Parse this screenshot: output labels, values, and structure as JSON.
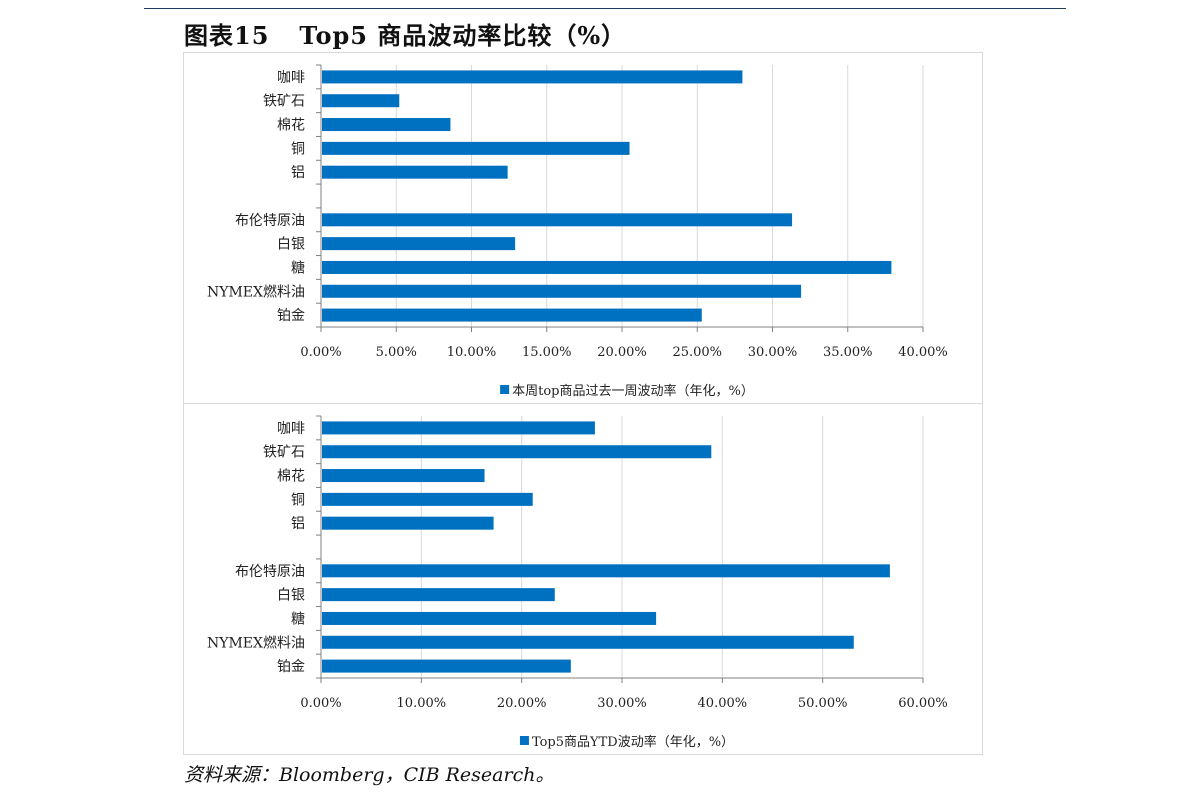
{
  "figure": {
    "number": "图表15",
    "title": "Top5 商品波动率比较（%）",
    "source": "资料来源：Bloomberg，CIB Research。"
  },
  "colors": {
    "bar": "#0070C0",
    "grid": "#d9d9d9",
    "axis": "#808080"
  },
  "chart_data": [
    {
      "type": "bar",
      "orientation": "horizontal",
      "categories": [
        "咖啡",
        "铁矿石",
        "棉花",
        "铜",
        "铝",
        "",
        "布伦特原油",
        "白银",
        "糖",
        "NYMEX燃料油",
        "铂金"
      ],
      "series": [
        {
          "name": "本周top商品过去一周波动率（年化，%）",
          "values": [
            28.0,
            5.2,
            8.6,
            20.5,
            12.4,
            null,
            31.3,
            12.9,
            37.9,
            31.9,
            25.3
          ]
        }
      ],
      "xlim": [
        0,
        40
      ],
      "xticks": [
        0,
        5,
        10,
        15,
        20,
        25,
        30,
        35,
        40
      ],
      "xtick_labels": [
        "0.00%",
        "5.00%",
        "10.00%",
        "15.00%",
        "20.00%",
        "25.00%",
        "30.00%",
        "35.00%",
        "40.00%"
      ],
      "grid": "vertical",
      "legend": "bottom"
    },
    {
      "type": "bar",
      "orientation": "horizontal",
      "categories": [
        "咖啡",
        "铁矿石",
        "棉花",
        "铜",
        "铝",
        "",
        "布伦特原油",
        "白银",
        "糖",
        "NYMEX燃料油",
        "铂金"
      ],
      "series": [
        {
          "name": "Top5商品YTD波动率（年化，%）",
          "values": [
            27.3,
            38.9,
            16.3,
            21.1,
            17.2,
            null,
            56.7,
            23.3,
            33.4,
            53.1,
            24.9
          ]
        }
      ],
      "xlim": [
        0,
        60
      ],
      "xticks": [
        0,
        10,
        20,
        30,
        40,
        50,
        60
      ],
      "xtick_labels": [
        "0.00%",
        "10.00%",
        "20.00%",
        "30.00%",
        "40.00%",
        "50.00%",
        "60.00%"
      ],
      "grid": "vertical",
      "legend": "bottom"
    }
  ]
}
